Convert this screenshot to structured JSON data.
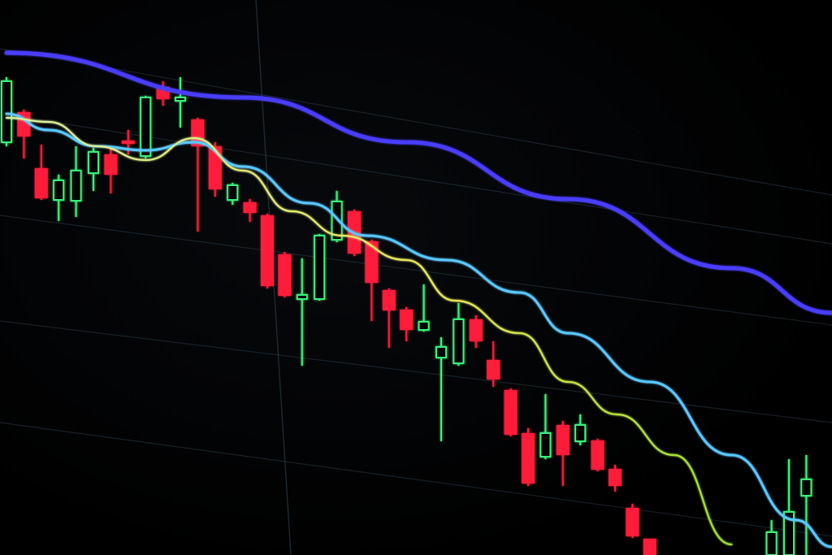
{
  "chart_data": {
    "type": "candlestick",
    "title": "",
    "xlabel": "",
    "ylabel": "",
    "grid": true,
    "legend": "none",
    "colors": {
      "up": "#3df07a",
      "down": "#ff1f3a",
      "ma_slow": "#4a3cff",
      "ma_mid": "#5ac8ff",
      "ma_fast": "#e8e85a",
      "grid": "#2a3a44"
    },
    "candles": [
      {
        "i": 0,
        "o": 50.8,
        "h": 58.8,
        "l": 50.3,
        "c": 58.3
      },
      {
        "i": 1,
        "o": 54.5,
        "h": 54.8,
        "l": 48.8,
        "c": 51.5
      },
      {
        "i": 2,
        "o": 47.6,
        "h": 50.5,
        "l": 43.7,
        "c": 43.9
      },
      {
        "i": 3,
        "o": 43.7,
        "h": 46.8,
        "l": 41.1,
        "c": 46.1
      },
      {
        "i": 4,
        "o": 43.6,
        "h": 50.3,
        "l": 41.6,
        "c": 47.3
      },
      {
        "i": 5,
        "o": 47.0,
        "h": 50.1,
        "l": 44.8,
        "c": 49.6
      },
      {
        "i": 6,
        "o": 49.3,
        "h": 50.3,
        "l": 44.5,
        "c": 46.8
      },
      {
        "i": 7,
        "o": 51.0,
        "h": 52.3,
        "l": 49.3,
        "c": 50.6
      },
      {
        "i": 8,
        "o": 49.1,
        "h": 56.5,
        "l": 48.8,
        "c": 56.3
      },
      {
        "i": 9,
        "o": 57.6,
        "h": 58.3,
        "l": 55.3,
        "c": 56.1
      },
      {
        "i": 10,
        "o": 55.9,
        "h": 58.8,
        "l": 52.6,
        "c": 56.3
      },
      {
        "i": 11,
        "o": 53.6,
        "h": 53.8,
        "l": 39.8,
        "c": 50.3
      },
      {
        "i": 12,
        "o": 50.3,
        "h": 50.8,
        "l": 44.1,
        "c": 45.0
      },
      {
        "i": 13,
        "o": 43.7,
        "h": 45.8,
        "l": 43.1,
        "c": 45.5
      },
      {
        "i": 14,
        "o": 43.4,
        "h": 43.8,
        "l": 41.0,
        "c": 42.1
      },
      {
        "i": 15,
        "o": 41.8,
        "h": 42.0,
        "l": 32.8,
        "c": 33.1
      },
      {
        "i": 16,
        "o": 37.0,
        "h": 37.3,
        "l": 31.7,
        "c": 31.9
      },
      {
        "i": 17,
        "o": 31.5,
        "h": 36.5,
        "l": 23.3,
        "c": 32.0
      },
      {
        "i": 18,
        "o": 31.5,
        "h": 39.5,
        "l": 31.3,
        "c": 39.3
      },
      {
        "i": 19,
        "o": 38.8,
        "h": 44.8,
        "l": 38.5,
        "c": 43.5
      },
      {
        "i": 20,
        "o": 42.3,
        "h": 42.5,
        "l": 36.8,
        "c": 37.1
      },
      {
        "i": 21,
        "o": 38.6,
        "h": 38.8,
        "l": 28.8,
        "c": 33.5
      },
      {
        "i": 22,
        "o": 32.6,
        "h": 32.8,
        "l": 25.5,
        "c": 30.1
      },
      {
        "i": 23,
        "o": 30.2,
        "h": 30.5,
        "l": 26.3,
        "c": 27.7
      },
      {
        "i": 24,
        "o": 27.7,
        "h": 33.3,
        "l": 27.5,
        "c": 28.7
      },
      {
        "i": 25,
        "o": 24.3,
        "h": 26.8,
        "l": 14.0,
        "c": 25.6
      },
      {
        "i": 26,
        "o": 23.6,
        "h": 31.0,
        "l": 23.3,
        "c": 29.0
      },
      {
        "i": 27,
        "o": 29.0,
        "h": 29.5,
        "l": 25.5,
        "c": 26.3
      },
      {
        "i": 28,
        "o": 24.0,
        "h": 26.3,
        "l": 20.7,
        "c": 21.6
      },
      {
        "i": 29,
        "o": 20.3,
        "h": 20.5,
        "l": 14.6,
        "c": 14.8
      },
      {
        "i": 30,
        "o": 15.0,
        "h": 15.6,
        "l": 8.5,
        "c": 8.8
      },
      {
        "i": 31,
        "o": 12.1,
        "h": 19.8,
        "l": 11.8,
        "c": 15.0
      },
      {
        "i": 32,
        "o": 16.0,
        "h": 16.5,
        "l": 8.5,
        "c": 12.3
      },
      {
        "i": 33,
        "o": 14.0,
        "h": 17.3,
        "l": 13.5,
        "c": 16.0
      },
      {
        "i": 34,
        "o": 14.1,
        "h": 14.3,
        "l": 10.3,
        "c": 10.5
      },
      {
        "i": 35,
        "o": 10.6,
        "h": 11.1,
        "l": 7.8,
        "c": 8.5
      },
      {
        "i": 36,
        "o": 5.8,
        "h": 6.3,
        "l": 2.1,
        "c": 2.3
      },
      {
        "i": 37,
        "o": 2.0,
        "h": 2.0,
        "l": 0.0,
        "c": 0.0
      },
      {
        "i": 44,
        "o": 0.0,
        "h": 4.3,
        "l": 0.0,
        "c": 2.8
      },
      {
        "i": 45,
        "o": 0.0,
        "h": 11.8,
        "l": 0.0,
        "c": 5.3
      },
      {
        "i": 46,
        "o": 7.3,
        "h": 12.3,
        "l": 0.0,
        "c": 9.3
      }
    ],
    "series": [
      {
        "key": "ma_slow",
        "points": [
          [
            0,
            61.8
          ],
          [
            13.6,
            56.3
          ],
          [
            23,
            50.8
          ],
          [
            32.3,
            43.8
          ],
          [
            41.7,
            35.3
          ],
          [
            47.5,
            29.8
          ]
        ]
      },
      {
        "key": "ma_mid",
        "points": [
          [
            0,
            54.3
          ],
          [
            2.4,
            52.3
          ],
          [
            5.2,
            50.3
          ],
          [
            8,
            49.8
          ],
          [
            10.8,
            50.8
          ],
          [
            13.6,
            47.8
          ],
          [
            17.4,
            43.3
          ],
          [
            20.7,
            39.3
          ],
          [
            25.3,
            36.3
          ],
          [
            29.5,
            32.3
          ],
          [
            32.3,
            27.3
          ],
          [
            37,
            21.3
          ],
          [
            41.7,
            12.3
          ],
          [
            45.4,
            4.3
          ],
          [
            47.5,
            1.0
          ]
        ]
      },
      {
        "key": "ma_fast",
        "points": [
          [
            0,
            53.8
          ],
          [
            2.4,
            53.3
          ],
          [
            5.2,
            50.3
          ],
          [
            8,
            48.6
          ],
          [
            10.8,
            51.3
          ],
          [
            13.6,
            47.3
          ],
          [
            16.4,
            42.3
          ],
          [
            19.3,
            39.3
          ],
          [
            23,
            36.3
          ],
          [
            25.8,
            31.3
          ],
          [
            29.5,
            27.3
          ],
          [
            32.3,
            21.3
          ],
          [
            35.1,
            17.3
          ],
          [
            38.4,
            12.3
          ],
          [
            41.7,
            1.3
          ]
        ]
      }
    ]
  }
}
